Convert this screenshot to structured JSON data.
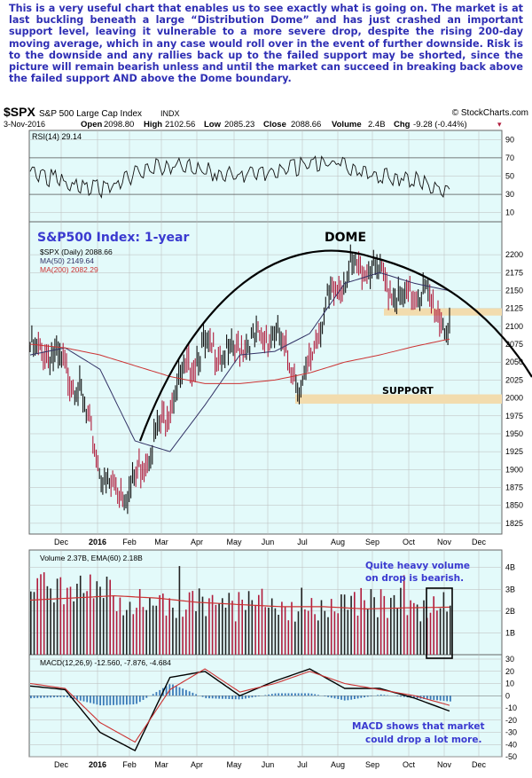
{
  "commentary": "This is a very useful chart that enables us to see exactly what is going on. The market is at last buckling beneath a large “Distribution Dome” and has just crashed an important support level, leaving it vulnerable to a more severe drop, despite the rising 200-day moving average, which in any case would roll over in the event of further downside. Risk is to the downside and any rallies back up to the failed support may be shorted, since the picture will remain bearish unless and until the market can succeed in breaking back above the failed support AND above the Dome boundary.",
  "header": {
    "symbol": "$SPX",
    "name": "S&P 500 Large Cap Index",
    "exchange": "INDX",
    "source": "© StockCharts.com",
    "date": "3-Nov-2016",
    "open_label": "Open",
    "open": "2098.80",
    "high_label": "High",
    "high": "2102.56",
    "low_label": "Low",
    "low": "2085.23",
    "close_label": "Close",
    "close": "2088.66",
    "volume_label": "Volume",
    "volume": "2.4B",
    "chg_label": "Chg",
    "chg": "-9.28 (-0.44%)",
    "chg_marker": "▾"
  },
  "colors": {
    "panel_bg": "#e3fafa",
    "annotation_blue": "#3a3ad0",
    "price_bar": "#b01c3c",
    "ma50": "#333366",
    "ma200": "#cc3333",
    "support_band": "#f2dcae",
    "macd_hist": "#3a7ab8",
    "grid": "#bbbbbb"
  },
  "annotations": {
    "title": "S&P500 Index: 1-year",
    "dome": "DOME",
    "support": "SUPPORT",
    "volume_note_line1": "Quite heavy volume",
    "volume_note_line2": "on drop is bearish.",
    "macd_note_line1": "MACD shows that market",
    "macd_note_line2": "could drop a lot more."
  },
  "chart_data": [
    {
      "type": "line",
      "panel": "RSI",
      "legend": "RSI(14) 29.14",
      "ylim": [
        0,
        100
      ],
      "y_ticks": [
        90,
        70,
        50,
        30,
        10
      ],
      "reference_lines": [
        70,
        30
      ],
      "series": [
        {
          "name": "RSI(14)",
          "x": [
            "Dec",
            "Jan",
            "Feb",
            "Mar",
            "Apr",
            "May",
            "Jun",
            "Jul",
            "Aug",
            "Sep",
            "Oct",
            "Nov"
          ],
          "values": [
            55,
            42,
            35,
            58,
            62,
            52,
            50,
            60,
            66,
            50,
            48,
            29
          ]
        }
      ]
    },
    {
      "type": "candlestick",
      "panel": "price",
      "legend": [
        "$SPX (Daily) 2088.66",
        "MA(50) 2149.64",
        "MA(200) 2082.29"
      ],
      "ylim": [
        1810,
        2215
      ],
      "y_ticks": [
        2200,
        2175,
        2150,
        2125,
        2100,
        2075,
        2050,
        2025,
        2000,
        1975,
        1950,
        1925,
        1900,
        1875,
        1850,
        1825
      ],
      "x_ticks": [
        "Dec",
        "2016",
        "Feb",
        "Mar",
        "Apr",
        "May",
        "Jun",
        "Jul",
        "Aug",
        "Sep",
        "Oct",
        "Nov",
        "Dec"
      ],
      "series": [
        {
          "name": "$SPX",
          "x": [
            "Nov",
            "Dec",
            "early Jan",
            "mid Jan",
            "Feb",
            "late Feb",
            "Mar",
            "Apr",
            "May",
            "late May",
            "Jun",
            "late Jun",
            "Jul",
            "Aug",
            "Sep",
            "late Sep",
            "Oct",
            "Nov 3"
          ],
          "values": [
            2070,
            2060,
            2010,
            1880,
            1870,
            1940,
            2020,
            2070,
            2060,
            2080,
            2090,
            2010,
            2130,
            2180,
            2180,
            2135,
            2150,
            2088.66
          ]
        },
        {
          "name": "MA(50)",
          "x": [
            "Nov",
            "Dec",
            "Jan",
            "Feb",
            "Mar",
            "Apr",
            "May",
            "Jun",
            "Jul",
            "Aug",
            "Sep",
            "Oct",
            "Nov"
          ],
          "values": [
            2060,
            2070,
            2040,
            1940,
            1925,
            1990,
            2060,
            2065,
            2090,
            2160,
            2175,
            2160,
            2149.64
          ]
        },
        {
          "name": "MA(200)",
          "x": [
            "Nov",
            "Dec",
            "Jan",
            "Feb",
            "Mar",
            "Apr",
            "May",
            "Jun",
            "Jul",
            "Aug",
            "Sep",
            "Oct",
            "Nov"
          ],
          "values": [
            2075,
            2070,
            2060,
            2045,
            2030,
            2020,
            2020,
            2025,
            2035,
            2050,
            2060,
            2072,
            2082.29
          ]
        }
      ],
      "support_zones": [
        {
          "label": "SUPPORT",
          "low": 1992,
          "high": 2005
        },
        {
          "low": 2115,
          "high": 2125
        }
      ]
    },
    {
      "type": "bar",
      "panel": "volume",
      "legend": "Volume 2.37B, EMA(60) 2.18B",
      "y_ticks": [
        "4B",
        "3B",
        "2B",
        "1B"
      ],
      "ylim": [
        0,
        4.8
      ]
    },
    {
      "type": "line",
      "panel": "MACD",
      "legend": "MACD(12,26,9) -12.560, -7.876, -4.684",
      "ylim": [
        -50,
        30
      ],
      "y_ticks": [
        30,
        20,
        10,
        0,
        -10,
        -20,
        -30,
        -40,
        -50
      ],
      "x_ticks": [
        "Dec",
        "2016",
        "Feb",
        "Mar",
        "Apr",
        "May",
        "Jun",
        "Jul",
        "Aug",
        "Sep",
        "Oct",
        "Nov",
        "Dec"
      ],
      "series": [
        {
          "name": "MACD",
          "x": [
            "Nov",
            "Dec",
            "Jan",
            "Feb",
            "Mar",
            "Apr",
            "May",
            "Jun",
            "Jul",
            "Aug",
            "Sep",
            "Oct",
            "Nov"
          ],
          "values": [
            8,
            5,
            -30,
            -45,
            15,
            20,
            0,
            12,
            22,
            6,
            6,
            -2,
            -12.56
          ]
        },
        {
          "name": "Signal",
          "x": [
            "Nov",
            "Dec",
            "Jan",
            "Feb",
            "Mar",
            "Apr",
            "May",
            "Jun",
            "Jul",
            "Aug",
            "Sep",
            "Oct",
            "Nov"
          ],
          "values": [
            10,
            6,
            -22,
            -38,
            5,
            22,
            3,
            10,
            20,
            10,
            5,
            0,
            -7.876
          ]
        }
      ]
    }
  ]
}
